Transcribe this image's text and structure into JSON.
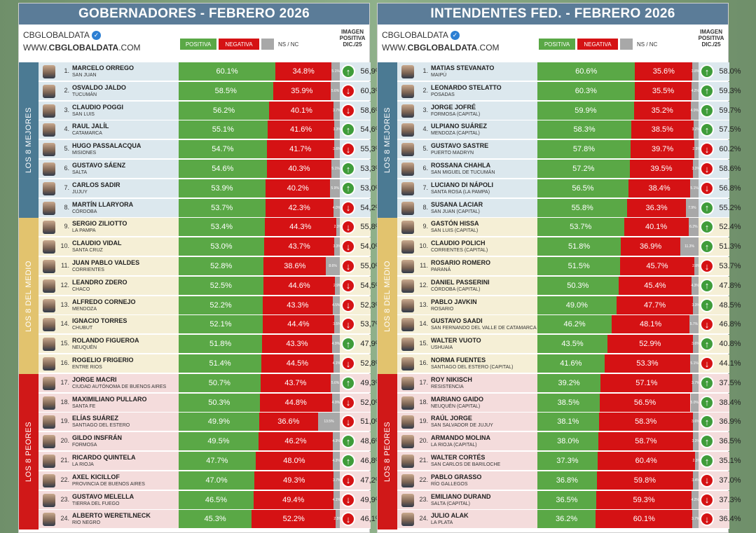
{
  "legend": {
    "positive": "POSITIVA",
    "negative": "NEGATIVA",
    "ns": "NS / NC"
  },
  "brand": {
    "name": "CBGLOBALDATA",
    "url_prefix": "WWW.",
    "url_main": "CBGLOBALDATA",
    "url_suffix": ".COM"
  },
  "image_header": [
    "IMAGEN",
    "POSITIVA",
    "DIC./25"
  ],
  "colors": {
    "positive": "#5aa846",
    "negative": "#d51214",
    "ns": "#a8a8a8",
    "title": "#5b7c98",
    "group_top": "#4b7a93",
    "group_mid": "#e2c36e",
    "group_bottom": "#d01818"
  },
  "groups": [
    "LOS 8 MEJORES",
    "LOS 8 DEL MEDIO",
    "LOS 8 PEORES"
  ],
  "chart_data": [
    {
      "type": "bar",
      "title": "GOBERNADORES - FEBRERO 2026",
      "rows": [
        {
          "rank": "1.",
          "name": "MARCELO ORREGO",
          "place": "SAN JUAN",
          "pos": 60.1,
          "neg": 34.8,
          "ns": 5.1,
          "trend": "up",
          "img": "56,9%"
        },
        {
          "rank": "2.",
          "name": "OSVALDO JALDO",
          "place": "TUCUMÁN",
          "pos": 58.5,
          "neg": 35.9,
          "ns": 5.6,
          "trend": "down",
          "img": "60,3%"
        },
        {
          "rank": "3.",
          "name": "CLAUDIO POGGI",
          "place": "SAN LUIS",
          "pos": 56.2,
          "neg": 40.1,
          "ns": 3.7,
          "trend": "down",
          "img": "58,6%"
        },
        {
          "rank": "4.",
          "name": "RAUL JALÍL",
          "place": "CATAMARCA",
          "pos": 55.1,
          "neg": 41.6,
          "ns": 3.3,
          "trend": "up",
          "img": "54,6%"
        },
        {
          "rank": "5.",
          "name": "HUGO PASSALACQUA",
          "place": "MISIONES",
          "pos": 54.7,
          "neg": 41.7,
          "ns": 3.6,
          "trend": "down",
          "img": "55,3%"
        },
        {
          "rank": "6.",
          "name": "GUSTAVO SÁENZ",
          "place": "SALTA",
          "pos": 54.6,
          "neg": 40.3,
          "ns": 5.1,
          "trend": "up",
          "img": "53,3%"
        },
        {
          "rank": "7.",
          "name": "CARLOS SADIR",
          "place": "JUJUY",
          "pos": 53.9,
          "neg": 40.2,
          "ns": 5.9,
          "trend": "up",
          "img": "53,0%"
        },
        {
          "rank": "8.",
          "name": "MARTÍN LLARYORA",
          "place": "CÓRDOBA",
          "pos": 53.7,
          "neg": 42.3,
          "ns": 4.0,
          "trend": "down",
          "img": "54,2%"
        },
        {
          "rank": "9.",
          "name": "SERGIO ZILIOTTO",
          "place": "LA PAMPA",
          "pos": 53.4,
          "neg": 44.3,
          "ns": 2.3,
          "trend": "down",
          "img": "55,8%"
        },
        {
          "rank": "10.",
          "name": "CLAUDIO VIDAL",
          "place": "SANTA CRUZ",
          "pos": 53.0,
          "neg": 43.7,
          "ns": 3.3,
          "trend": "down",
          "img": "54,0%"
        },
        {
          "rank": "11.",
          "name": "JUAN PABLO VALDES",
          "place": "CORRIENTES",
          "pos": 52.8,
          "neg": 38.6,
          "ns": 8.6,
          "trend": "down",
          "img": "55,0%"
        },
        {
          "rank": "12.",
          "name": "LEANDRO ZDERO",
          "place": "CHACO",
          "pos": 52.5,
          "neg": 44.6,
          "ns": 2.9,
          "trend": "down",
          "img": "54,5%"
        },
        {
          "rank": "13.",
          "name": "ALFREDO CORNEJO",
          "place": "MENDOZA",
          "pos": 52.2,
          "neg": 43.3,
          "ns": 4.5,
          "trend": "down",
          "img": "52,3%"
        },
        {
          "rank": "14.",
          "name": "IGNACIO TORRES",
          "place": "CHUBUT",
          "pos": 52.1,
          "neg": 44.4,
          "ns": 3.5,
          "trend": "down",
          "img": "53,7%"
        },
        {
          "rank": "15.",
          "name": "ROLANDO FIGUEROA",
          "place": "NEUQUÉN",
          "pos": 51.8,
          "neg": 43.3,
          "ns": 4.9,
          "trend": "up",
          "img": "47,9%"
        },
        {
          "rank": "16.",
          "name": "ROGELIO FRIGERIO",
          "place": "ENTRE RIOS",
          "pos": 51.4,
          "neg": 44.5,
          "ns": 4.1,
          "trend": "down",
          "img": "52,8%"
        },
        {
          "rank": "17.",
          "name": "JORGE MACRI",
          "place": "CIUDAD AUTÓNOMA DE BUENOS AIRES",
          "pos": 50.7,
          "neg": 43.7,
          "ns": 5.6,
          "trend": "up",
          "img": "49,3%"
        },
        {
          "rank": "18.",
          "name": "MAXIMILIANO PULLARO",
          "place": "SANTA FE",
          "pos": 50.3,
          "neg": 44.8,
          "ns": 4.9,
          "trend": "down",
          "img": "52,0%"
        },
        {
          "rank": "19.",
          "name": "ELÍAS SUÁREZ",
          "place": "SANTIAGO DEL ESTERO",
          "pos": 49.9,
          "neg": 36.6,
          "ns": 13.5,
          "trend": "down",
          "img": "51,0%"
        },
        {
          "rank": "20.",
          "name": "GILDO INSFRÁN",
          "place": "FORMOSA",
          "pos": 49.5,
          "neg": 46.2,
          "ns": 4.3,
          "trend": "up",
          "img": "48,6%"
        },
        {
          "rank": "21.",
          "name": "RICARDO QUINTELA",
          "place": "LA RIOJA",
          "pos": 47.7,
          "neg": 48.0,
          "ns": 4.3,
          "trend": "up",
          "img": "46,8%"
        },
        {
          "rank": "22.",
          "name": "AXEL KICILLOF",
          "place": "PROVINCIA DE BUENOS AIRES",
          "pos": 47.0,
          "neg": 49.3,
          "ns": 3.7,
          "trend": "down",
          "img": "47,2%"
        },
        {
          "rank": "23.",
          "name": "GUSTAVO MELELLA",
          "place": "TIERRA DEL FUEGO",
          "pos": 46.5,
          "neg": 49.4,
          "ns": 4.1,
          "trend": "down",
          "img": "49,9%"
        },
        {
          "rank": "24.",
          "name": "ALBERTO WERETILNECK",
          "place": "RIO NEGRO",
          "pos": 45.3,
          "neg": 52.2,
          "ns": 2.5,
          "trend": "down",
          "img": "46,1%"
        }
      ]
    },
    {
      "type": "bar",
      "title": "INTENDENTES FED. - FEBRERO 2026",
      "rows": [
        {
          "rank": "1.",
          "name": "MATIAS STEVANATO",
          "place": "MAIPÚ",
          "pos": 60.6,
          "neg": 35.6,
          "ns": 3.8,
          "trend": "up",
          "img": "58.0%"
        },
        {
          "rank": "2.",
          "name": "LEONARDO STELATTO",
          "place": "POSADAS",
          "pos": 60.3,
          "neg": 35.5,
          "ns": 4.2,
          "trend": "up",
          "img": "59.3%"
        },
        {
          "rank": "3.",
          "name": "JORGE JOFRÉ",
          "place": "FORMOSA (CAPITAL)",
          "pos": 59.9,
          "neg": 35.2,
          "ns": 4.9,
          "trend": "up",
          "img": "59.7%"
        },
        {
          "rank": "4.",
          "name": "ULPIANO SUÁREZ",
          "place": "MENDOZA (CAPITAL)",
          "pos": 58.3,
          "neg": 38.5,
          "ns": 3.2,
          "trend": "up",
          "img": "57.5%"
        },
        {
          "rank": "5.",
          "name": "GUSTAVO SASTRE",
          "place": "PUERTO MADRYN",
          "pos": 57.8,
          "neg": 39.7,
          "ns": 2.5,
          "trend": "down",
          "img": "60.2%"
        },
        {
          "rank": "6.",
          "name": "ROSSANA CHAHLA",
          "place": "SAN MIGUEL DE TUCUMÁN",
          "pos": 57.2,
          "neg": 39.5,
          "ns": 3.3,
          "trend": "down",
          "img": "58.6%"
        },
        {
          "rank": "7.",
          "name": "LUCIANO DI NÁPOLI",
          "place": "SANTA ROSA (LA PAMPA)",
          "pos": 56.5,
          "neg": 38.4,
          "ns": 5.1,
          "trend": "down",
          "img": "56.8%"
        },
        {
          "rank": "8.",
          "name": "SUSANA LACIAR",
          "place": "SAN JUAN (CAPITAL)",
          "pos": 55.8,
          "neg": 36.3,
          "ns": 7.9,
          "trend": "up",
          "img": "55.2%"
        },
        {
          "rank": "9.",
          "name": "GASTÓN HISSA",
          "place": "SAN LUIS (CAPITAL)",
          "pos": 53.7,
          "neg": 40.1,
          "ns": 6.2,
          "trend": "up",
          "img": "52.4%"
        },
        {
          "rank": "10.",
          "name": "CLAUDIO POLICH",
          "place": "CORRIENTES (CAPITAL)",
          "pos": 51.8,
          "neg": 36.9,
          "ns": 11.3,
          "trend": "up",
          "img": "51.3%"
        },
        {
          "rank": "11.",
          "name": "ROSARIO ROMERO",
          "place": "PARANÁ",
          "pos": 51.5,
          "neg": 45.7,
          "ns": 2.8,
          "trend": "down",
          "img": "53.7%"
        },
        {
          "rank": "12.",
          "name": "DANIEL PASSERINI",
          "place": "CÓRDOBA (CAPITAL)",
          "pos": 50.3,
          "neg": 45.4,
          "ns": 4.3,
          "trend": "up",
          "img": "47.8%"
        },
        {
          "rank": "13.",
          "name": "PABLO JAVKIN",
          "place": "ROSARIO",
          "pos": 49.0,
          "neg": 47.7,
          "ns": 3.3,
          "trend": "up",
          "img": "48.5%"
        },
        {
          "rank": "14.",
          "name": "GUSTAVO SAADI",
          "place": "SAN FERNANDO DEL VALLE DE CATAMARCA",
          "pos": 46.2,
          "neg": 48.1,
          "ns": 5.7,
          "trend": "down",
          "img": "46.8%"
        },
        {
          "rank": "15.",
          "name": "WALTER VUOTO",
          "place": "USHUAIA",
          "pos": 43.5,
          "neg": 52.9,
          "ns": 3.6,
          "trend": "up",
          "img": "40.8%"
        },
        {
          "rank": "16.",
          "name": "NORMA FUENTES",
          "place": "SANTIAGO DEL ESTERO (CAPITAL)",
          "pos": 41.6,
          "neg": 53.3,
          "ns": 5.1,
          "trend": "down",
          "img": "44.1%"
        },
        {
          "rank": "17.",
          "name": "ROY NIKISCH",
          "place": "RESISTENCIA",
          "pos": 39.2,
          "neg": 57.1,
          "ns": 3.7,
          "trend": "up",
          "img": "37.5%"
        },
        {
          "rank": "18.",
          "name": "MARIANO GAIDO",
          "place": "NEUQUÉN (CAPITAL)",
          "pos": 38.5,
          "neg": 56.5,
          "ns": 5.0,
          "trend": "up",
          "img": "38.4%"
        },
        {
          "rank": "19.",
          "name": "RAÚL JORGE",
          "place": "SAN SALVADOR DE JUJUY",
          "pos": 38.1,
          "neg": 58.3,
          "ns": 3.6,
          "trend": "up",
          "img": "36.9%"
        },
        {
          "rank": "20.",
          "name": "ARMANDO MOLINA",
          "place": "LA RIOJA (CAPITAL)",
          "pos": 38.0,
          "neg": 58.7,
          "ns": 3.3,
          "trend": "up",
          "img": "36.5%"
        },
        {
          "rank": "21.",
          "name": "WALTER CORTÉS",
          "place": "SAN CARLOS DE BARILOCHE",
          "pos": 37.3,
          "neg": 60.4,
          "ns": 2.3,
          "trend": "up",
          "img": "35.1%"
        },
        {
          "rank": "22.",
          "name": "PABLO GRASSO",
          "place": "RÍO GALLEGOS",
          "pos": 36.8,
          "neg": 59.8,
          "ns": 3.4,
          "trend": "down",
          "img": "37.0%"
        },
        {
          "rank": "23.",
          "name": "EMILIANO DURAND",
          "place": "SALTA (CAPITAL)",
          "pos": 36.5,
          "neg": 59.3,
          "ns": 4.2,
          "trend": "down",
          "img": "37.3%"
        },
        {
          "rank": "24.",
          "name": "JULIO ALAK",
          "place": "LA PLATA",
          "pos": 36.2,
          "neg": 60.1,
          "ns": 3.7,
          "trend": "down",
          "img": "36.4%"
        }
      ]
    }
  ]
}
